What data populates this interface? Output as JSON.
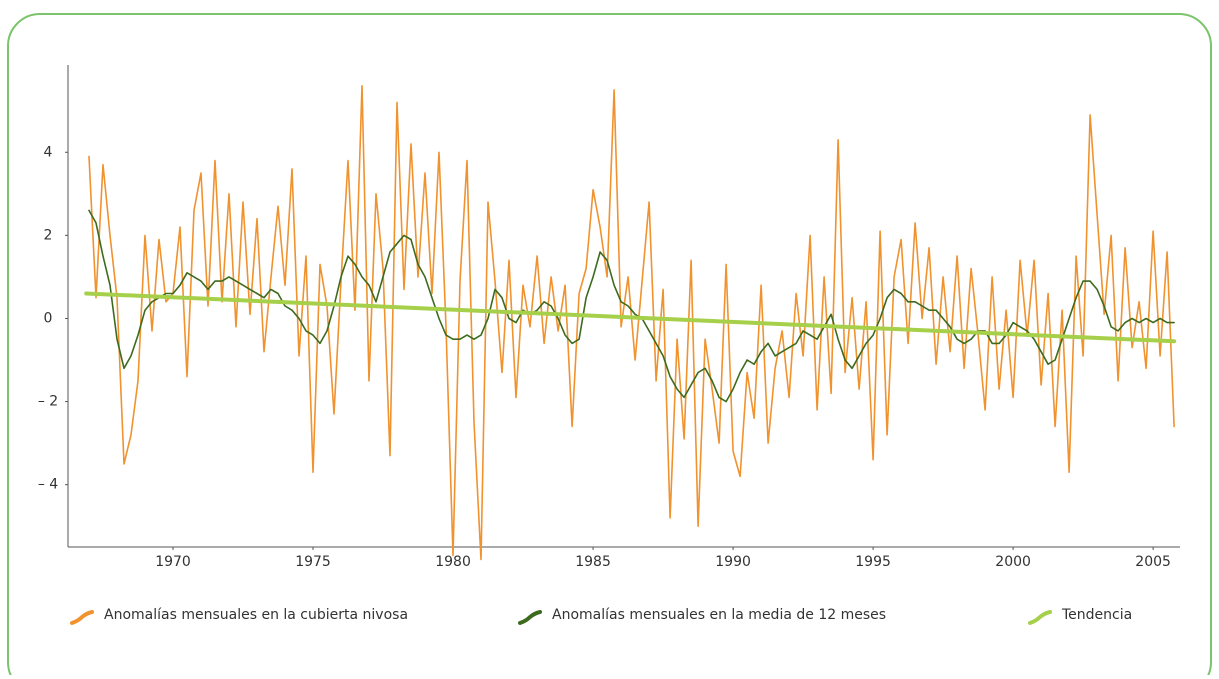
{
  "chart_data": {
    "type": "line",
    "xlim": [
      1966.25,
      2005.96
    ],
    "xticks": [
      1970,
      1975,
      1980,
      1985,
      1990,
      1995,
      2000,
      2005
    ],
    "ylim": [
      -5.5,
      6.1
    ],
    "yticks": [
      {
        "value": -4,
        "label": "– 4"
      },
      {
        "value": -2,
        "label": "– 2"
      },
      0,
      2,
      4
    ],
    "x": [
      1967,
      1967.25,
      1967.5,
      1967.75,
      1968,
      1968.25,
      1968.5,
      1968.75,
      1969,
      1969.25,
      1969.5,
      1969.75,
      1970,
      1970.25,
      1970.5,
      1970.75,
      1971,
      1971.25,
      1971.5,
      1971.75,
      1972,
      1972.25,
      1972.5,
      1972.75,
      1973,
      1973.25,
      1973.5,
      1973.75,
      1974,
      1974.25,
      1974.5,
      1974.75,
      1975,
      1975.25,
      1975.5,
      1975.75,
      1976,
      1976.25,
      1976.5,
      1976.75,
      1977,
      1977.25,
      1977.5,
      1977.75,
      1978,
      1978.25,
      1978.5,
      1978.75,
      1979,
      1979.25,
      1979.5,
      1979.75,
      1980,
      1980.25,
      1980.5,
      1980.75,
      1981,
      1981.25,
      1981.5,
      1981.75,
      1982,
      1982.25,
      1982.5,
      1982.75,
      1983,
      1983.25,
      1983.5,
      1983.75,
      1984,
      1984.25,
      1984.5,
      1984.75,
      1985,
      1985.25,
      1985.5,
      1985.75,
      1986,
      1986.25,
      1986.5,
      1986.75,
      1987,
      1987.25,
      1987.5,
      1987.75,
      1988,
      1988.25,
      1988.5,
      1988.75,
      1989,
      1989.25,
      1989.5,
      1989.75,
      1990,
      1990.25,
      1990.5,
      1990.75,
      1991,
      1991.25,
      1991.5,
      1991.75,
      1992,
      1992.25,
      1992.5,
      1992.75,
      1993,
      1993.25,
      1993.5,
      1993.75,
      1994,
      1994.25,
      1994.5,
      1994.75,
      1995,
      1995.25,
      1995.5,
      1995.75,
      1996,
      1996.25,
      1996.5,
      1996.75,
      1997,
      1997.25,
      1997.5,
      1997.75,
      1998,
      1998.25,
      1998.5,
      1998.75,
      1999,
      1999.25,
      1999.5,
      1999.75,
      2000,
      2000.25,
      2000.5,
      2000.75,
      2001,
      2001.25,
      2001.5,
      2001.75,
      2002,
      2002.25,
      2002.5,
      2002.75,
      2003,
      2003.25,
      2003.5,
      2003.75,
      2004,
      2004.25,
      2004.5,
      2004.75,
      2005,
      2005.25,
      2005.5,
      2005.75
    ],
    "series": [
      {
        "name": "Anomalías mensuales en la cubierta nivosa",
        "color": "#f0922e",
        "width": 1.6,
        "values": [
          3.9,
          0.5,
          3.7,
          2.0,
          0.5,
          -3.5,
          -2.8,
          -1.5,
          2.0,
          -0.3,
          1.9,
          0.4,
          0.6,
          2.2,
          -1.4,
          2.6,
          3.5,
          0.3,
          3.8,
          0.4,
          3.0,
          -0.2,
          2.8,
          0.1,
          2.4,
          -0.8,
          1.0,
          2.7,
          0.8,
          3.6,
          -0.9,
          1.5,
          -3.7,
          1.3,
          0.3,
          -2.3,
          0.9,
          3.8,
          0.2,
          5.6,
          -1.5,
          3.0,
          1.2,
          -3.3,
          5.2,
          0.7,
          4.2,
          1.0,
          3.5,
          0.6,
          4.0,
          -0.2,
          -5.7,
          0.9,
          3.8,
          -2.5,
          -5.8,
          2.8,
          0.9,
          -1.3,
          1.4,
          -1.9,
          0.8,
          -0.2,
          1.5,
          -0.6,
          1.0,
          -0.3,
          0.8,
          -2.6,
          0.6,
          1.2,
          3.1,
          2.2,
          1.0,
          5.5,
          -0.2,
          1.0,
          -1.0,
          0.9,
          2.8,
          -1.5,
          0.7,
          -4.8,
          -0.5,
          -2.9,
          1.4,
          -5.0,
          -0.5,
          -1.7,
          -3.0,
          1.3,
          -3.2,
          -3.8,
          -1.3,
          -2.4,
          0.8,
          -3.0,
          -1.2,
          -0.3,
          -1.9,
          0.6,
          -0.9,
          2.0,
          -2.2,
          1.0,
          -1.8,
          4.3,
          -1.3,
          0.5,
          -1.7,
          0.4,
          -3.4,
          2.1,
          -2.8,
          1.0,
          1.9,
          -0.6,
          2.3,
          0.0,
          1.7,
          -1.1,
          1.0,
          -0.8,
          1.5,
          -1.2,
          1.2,
          -0.4,
          -2.2,
          1.0,
          -1.7,
          0.2,
          -1.9,
          1.4,
          -0.4,
          1.4,
          -1.6,
          0.6,
          -2.6,
          0.2,
          -3.7,
          1.5,
          -0.9,
          4.9,
          2.5,
          0.1,
          2.0,
          -1.5,
          1.7,
          -0.7,
          0.4,
          -1.2,
          2.1,
          -0.9,
          1.6,
          -2.6
        ]
      },
      {
        "name": "Anomalías mensuales en la media de 12 meses",
        "color": "#3d6b1e",
        "width": 1.6,
        "values": [
          2.6,
          2.3,
          1.5,
          0.8,
          -0.5,
          -1.2,
          -0.9,
          -0.4,
          0.2,
          0.4,
          0.5,
          0.6,
          0.6,
          0.8,
          1.1,
          1.0,
          0.9,
          0.7,
          0.9,
          0.9,
          1.0,
          0.9,
          0.8,
          0.7,
          0.6,
          0.5,
          0.7,
          0.6,
          0.3,
          0.2,
          0.0,
          -0.3,
          -0.4,
          -0.6,
          -0.3,
          0.3,
          1.0,
          1.5,
          1.3,
          1.0,
          0.8,
          0.4,
          1.0,
          1.6,
          1.8,
          2.0,
          1.9,
          1.3,
          1.0,
          0.5,
          0.0,
          -0.4,
          -0.5,
          -0.5,
          -0.4,
          -0.5,
          -0.4,
          0.0,
          0.7,
          0.5,
          0.0,
          -0.1,
          0.2,
          0.1,
          0.2,
          0.4,
          0.3,
          0.0,
          -0.4,
          -0.6,
          -0.5,
          0.5,
          1.0,
          1.6,
          1.4,
          0.8,
          0.4,
          0.3,
          0.1,
          0.0,
          -0.3,
          -0.6,
          -0.9,
          -1.4,
          -1.7,
          -1.9,
          -1.6,
          -1.3,
          -1.2,
          -1.5,
          -1.9,
          -2.0,
          -1.7,
          -1.3,
          -1.0,
          -1.1,
          -0.8,
          -0.6,
          -0.9,
          -0.8,
          -0.7,
          -0.6,
          -0.3,
          -0.4,
          -0.5,
          -0.2,
          0.1,
          -0.5,
          -1.0,
          -1.2,
          -0.9,
          -0.6,
          -0.4,
          0.0,
          0.5,
          0.7,
          0.6,
          0.4,
          0.4,
          0.3,
          0.2,
          0.2,
          0.0,
          -0.2,
          -0.5,
          -0.6,
          -0.5,
          -0.3,
          -0.3,
          -0.6,
          -0.6,
          -0.4,
          -0.1,
          -0.2,
          -0.3,
          -0.5,
          -0.8,
          -1.1,
          -1.0,
          -0.5,
          0.0,
          0.5,
          0.9,
          0.9,
          0.7,
          0.3,
          -0.2,
          -0.3,
          -0.1,
          0.0,
          -0.1,
          0.0,
          -0.1,
          0.0,
          -0.1,
          -0.1
        ]
      },
      {
        "name": "Tendencia",
        "color": "#a6cf4a",
        "width": 4,
        "x": [
          1966.9,
          2005.75
        ],
        "values": [
          0.6,
          -0.55
        ]
      }
    ]
  }
}
